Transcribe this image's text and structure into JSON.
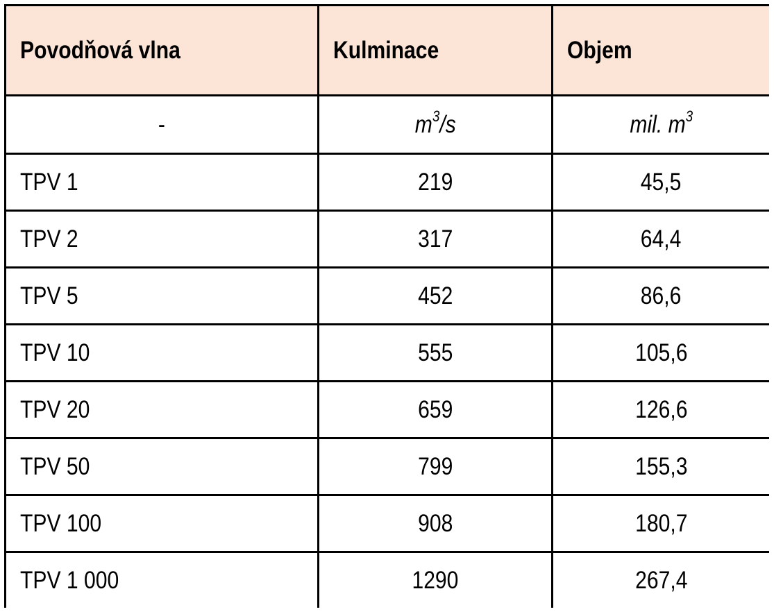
{
  "table": {
    "header_bg": "#fce4d6",
    "columns": [
      "Povodňová vlna",
      "Kulminace",
      "Objem"
    ],
    "units": {
      "first": "-",
      "kulminace_base": "m",
      "kulminace_exp": "3",
      "kulminace_tail": "/s",
      "objem_base": "mil. m",
      "objem_exp": "3"
    },
    "rows": [
      {
        "vlna": "TPV 1",
        "kulminace": "219",
        "objem": "45,5"
      },
      {
        "vlna": "TPV 2",
        "kulminace": "317",
        "objem": "64,4"
      },
      {
        "vlna": "TPV 5",
        "kulminace": "452",
        "objem": "86,6"
      },
      {
        "vlna": "TPV 10",
        "kulminace": "555",
        "objem": "105,6"
      },
      {
        "vlna": "TPV 20",
        "kulminace": "659",
        "objem": "126,6"
      },
      {
        "vlna": "TPV 50",
        "kulminace": "799",
        "objem": "155,3"
      },
      {
        "vlna": "TPV 100",
        "kulminace": "908",
        "objem": "180,7"
      },
      {
        "vlna": "TPV 1 000",
        "kulminace": "1290",
        "objem": "267,4"
      }
    ]
  }
}
